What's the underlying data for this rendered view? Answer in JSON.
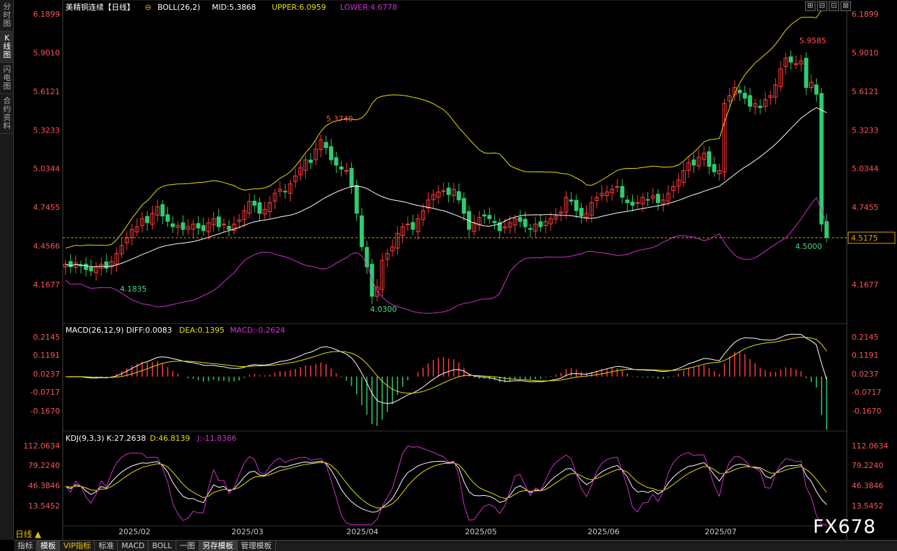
{
  "sidebar": {
    "tabs": [
      {
        "label": "分\n时\n图",
        "active": false
      },
      {
        "label": "K\n线\n图",
        "active": true
      },
      {
        "label": "闪\n电\n图",
        "active": false
      },
      {
        "label": "合\n约\n资\n料",
        "active": false
      }
    ]
  },
  "window_controls": [
    "⊞",
    "⊟",
    "⊡",
    "⊠"
  ],
  "main": {
    "symbol": "美精铜连续",
    "period_tag": "【日线】",
    "indicator": "BOLL(26,2)",
    "mid": "MID:5.3868",
    "upper": "UPPER:6.0959",
    "lower": "LOWER:4.6778",
    "y_ticks_left": [
      "6.1899",
      "5.9010",
      "5.6121",
      "5.3233",
      "5.0344",
      "4.7455",
      "4.4566",
      "4.1677"
    ],
    "y_ticks_right": [
      "6.1899",
      "5.9010",
      "5.6121",
      "5.3233",
      "5.0344",
      "4.7455",
      "4.1677"
    ],
    "current_price": "4.5175",
    "annotations": {
      "high1": "5.3740",
      "high2": "5.9585",
      "low1": "4.1835",
      "low2": "4.0300",
      "last_low": "4.5000"
    }
  },
  "macd": {
    "title": "MACD(26,12,9)",
    "diff": "DIFF:0.0083",
    "dea": "DEA:0.1395",
    "macd": "MACD:-0.2624",
    "y_ticks": [
      "0.2145",
      "0.1191",
      "0.0237",
      "-0.0717",
      "-0.1670"
    ]
  },
  "kdj": {
    "title": "KDJ(9,3,3)",
    "k": "K:27.2638",
    "d": "D:46.8139",
    "j": "J:-11.8366",
    "y_ticks": [
      "112.0634",
      "79.2240",
      "46.3846",
      "13.5452"
    ]
  },
  "x_axis": [
    "2025/02",
    "2025/03",
    "2025/04",
    "2025/05",
    "2025/06",
    "2025/07"
  ],
  "period_label": "日线 ▲",
  "bottom_tabs": [
    {
      "label": "指标",
      "active": false
    },
    {
      "label": "模板",
      "active": true
    },
    {
      "label": "VIP指标",
      "active": false,
      "vip": true
    },
    {
      "label": "标准",
      "active": false
    },
    {
      "label": "MACD",
      "active": false
    },
    {
      "label": "BOLL",
      "active": false
    },
    {
      "label": "一图",
      "active": false
    },
    {
      "label": "另存模板",
      "active": true
    },
    {
      "label": "管理模板",
      "active": false
    }
  ],
  "watermark": "FX678",
  "colors": {
    "up": "#ff3b3b",
    "down": "#2ecc71",
    "mid": "#ffffff",
    "upper": "#e8e000",
    "lower": "#d030d0",
    "dea": "#e8e000",
    "j": "#d030d0"
  },
  "chart_data": {
    "type": "candlestick",
    "closes": [
      4.32,
      4.3,
      4.33,
      4.31,
      4.28,
      4.27,
      4.3,
      4.32,
      4.29,
      4.34,
      4.4,
      4.46,
      4.52,
      4.58,
      4.6,
      4.66,
      4.63,
      4.7,
      4.75,
      4.68,
      4.64,
      4.6,
      4.61,
      4.58,
      4.6,
      4.62,
      4.59,
      4.57,
      4.63,
      4.66,
      4.6,
      4.62,
      4.58,
      4.62,
      4.65,
      4.72,
      4.79,
      4.76,
      4.7,
      4.73,
      4.78,
      4.85,
      4.88,
      4.86,
      4.92,
      4.98,
      5.04,
      5.1,
      5.08,
      5.18,
      5.25,
      5.19,
      5.1,
      5.06,
      5.03,
      5.02,
      4.9,
      4.7,
      4.45,
      4.3,
      4.08,
      4.15,
      4.35,
      4.4,
      4.45,
      4.55,
      4.6,
      4.62,
      4.58,
      4.66,
      4.72,
      4.8,
      4.84,
      4.86,
      4.87,
      4.84,
      4.88,
      4.8,
      4.7,
      4.58,
      4.63,
      4.67,
      4.68,
      4.66,
      4.63,
      4.57,
      4.6,
      4.63,
      4.66,
      4.64,
      4.6,
      4.58,
      4.62,
      4.6,
      4.64,
      4.66,
      4.68,
      4.71,
      4.82,
      4.79,
      4.72,
      4.68,
      4.7,
      4.78,
      4.82,
      4.85,
      4.86,
      4.88,
      4.9,
      4.82,
      4.78,
      4.76,
      4.78,
      4.82,
      4.8,
      4.83,
      4.78,
      4.8,
      4.85,
      4.9,
      4.95,
      5.02,
      5.08,
      5.06,
      5.12,
      5.15,
      5.05,
      5.01,
      5.02,
      5.52,
      5.58,
      5.64,
      5.6,
      5.56,
      5.5,
      5.52,
      5.49,
      5.55,
      5.58,
      5.66,
      5.78,
      5.86,
      5.83,
      5.82,
      5.84,
      5.64,
      5.68,
      5.59,
      4.62,
      4.52
    ],
    "boll": {
      "mid": "5.3868",
      "upper": "6.0959",
      "lower": "4.6778"
    },
    "ylim": [
      4.0,
      6.25
    ]
  }
}
